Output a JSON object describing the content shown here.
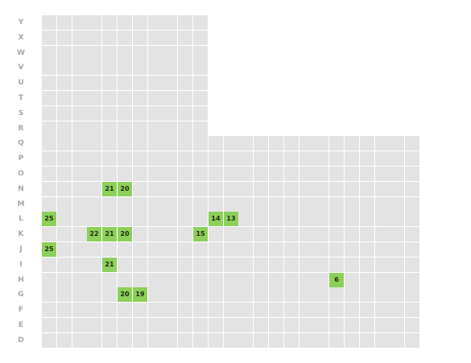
{
  "rows": [
    {
      "label": "Y",
      "count": 11,
      "available": []
    },
    {
      "label": "X",
      "count": 11,
      "available": []
    },
    {
      "label": "W",
      "count": 11,
      "available": []
    },
    {
      "label": "V",
      "count": 11,
      "available": []
    },
    {
      "label": "U",
      "count": 11,
      "available": []
    },
    {
      "label": "T",
      "count": 11,
      "available": []
    },
    {
      "label": "S",
      "count": 11,
      "available": []
    },
    {
      "label": "R",
      "count": 11,
      "available": []
    },
    {
      "label": "Q",
      "count": 25,
      "available": []
    },
    {
      "label": "P",
      "count": 25,
      "available": []
    },
    {
      "label": "O",
      "count": 25,
      "available": []
    },
    {
      "label": "N",
      "count": 25,
      "available": [
        {
          "col": 5,
          "seat": "21"
        },
        {
          "col": 6,
          "seat": "20"
        }
      ]
    },
    {
      "label": "M",
      "count": 25,
      "available": []
    },
    {
      "label": "L",
      "count": 25,
      "available": [
        {
          "col": 1,
          "seat": "25"
        },
        {
          "col": 12,
          "seat": "14"
        },
        {
          "col": 13,
          "seat": "13"
        }
      ]
    },
    {
      "label": "K",
      "count": 25,
      "available": [
        {
          "col": 4,
          "seat": "22"
        },
        {
          "col": 5,
          "seat": "21"
        },
        {
          "col": 6,
          "seat": "20"
        },
        {
          "col": 11,
          "seat": "15"
        }
      ]
    },
    {
      "label": "J",
      "count": 25,
      "available": [
        {
          "col": 1,
          "seat": "25"
        }
      ]
    },
    {
      "label": "I",
      "count": 25,
      "available": [
        {
          "col": 5,
          "seat": "21"
        }
      ]
    },
    {
      "label": "H",
      "count": 25,
      "available": [
        {
          "col": 20,
          "seat": "6"
        }
      ]
    },
    {
      "label": "G",
      "count": 25,
      "available": [
        {
          "col": 6,
          "seat": "20"
        },
        {
          "col": 7,
          "seat": "19"
        }
      ]
    },
    {
      "label": "F",
      "count": 25,
      "available": []
    },
    {
      "label": "E",
      "count": 25,
      "available": []
    },
    {
      "label": "D",
      "count": 25,
      "available": []
    }
  ],
  "colors": {
    "empty_seat": "#e3e3e3",
    "available_seat": "#8ccf59",
    "row_label": "#a7a7a7",
    "seat_text": "#1e2a12"
  }
}
